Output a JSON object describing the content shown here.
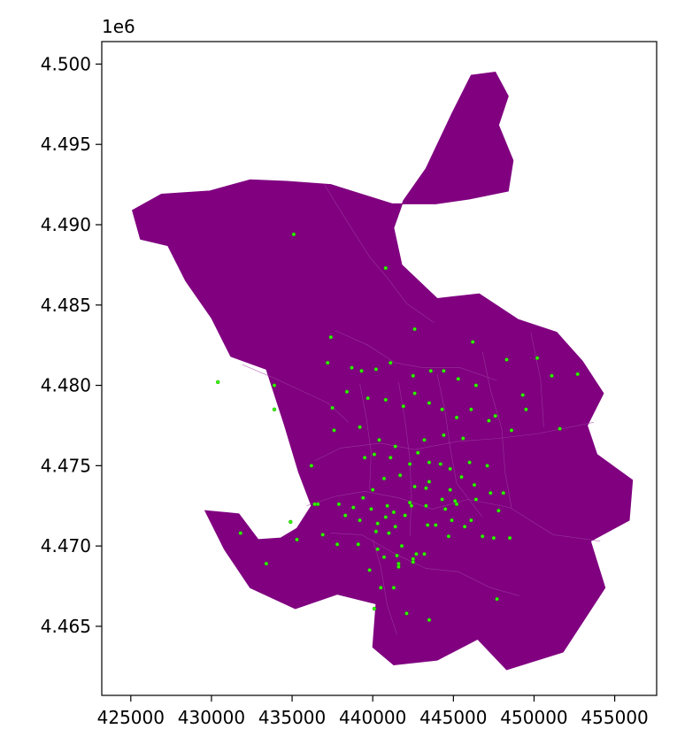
{
  "chart_data": {
    "type": "scatter",
    "title": "",
    "xlabel": "",
    "ylabel": "",
    "y_offset_label": "1e6",
    "xlim": [
      423200,
      457600
    ],
    "ylim": [
      4460700,
      4501400
    ],
    "x_ticks": [
      425000,
      430000,
      435000,
      440000,
      445000,
      450000,
      455000
    ],
    "x_tick_labels": [
      "425000",
      "430000",
      "435000",
      "440000",
      "445000",
      "450000",
      "455000"
    ],
    "y_ticks": [
      4465000,
      4470000,
      4475000,
      4480000,
      4485000,
      4490000,
      4495000,
      4500000
    ],
    "y_tick_labels": [
      "4.465",
      "4.470",
      "4.475",
      "4.480",
      "4.485",
      "4.490",
      "4.495",
      "4.500"
    ],
    "grid": false,
    "legend": "none",
    "colors": {
      "polygon_fill": "#800080",
      "polygon_edge": "#a040a0",
      "points": "#33ff00",
      "point_edge": "#1a8000"
    },
    "layers": [
      {
        "kind": "polygons",
        "name": "districts",
        "outline": [
          [
            432900,
            4470400
          ],
          [
            431700,
            4472000
          ],
          [
            429600,
            4472200
          ],
          [
            430800,
            4469800
          ],
          [
            432400,
            4467400
          ],
          [
            435200,
            4466100
          ],
          [
            437800,
            4467000
          ],
          [
            440200,
            4466400
          ],
          [
            440000,
            4463700
          ],
          [
            441300,
            4462600
          ],
          [
            444000,
            4462900
          ],
          [
            446500,
            4464200
          ],
          [
            448300,
            4462300
          ],
          [
            451800,
            4463400
          ],
          [
            454400,
            4467400
          ],
          [
            453500,
            4470300
          ],
          [
            455900,
            4471600
          ],
          [
            456100,
            4474100
          ],
          [
            453900,
            4475700
          ],
          [
            453300,
            4477500
          ],
          [
            454300,
            4479500
          ],
          [
            453000,
            4481500
          ],
          [
            451400,
            4483300
          ],
          [
            449000,
            4484100
          ],
          [
            446600,
            4485700
          ],
          [
            444000,
            4485400
          ],
          [
            441800,
            4487500
          ],
          [
            441300,
            4489800
          ],
          [
            441900,
            4491500
          ],
          [
            443300,
            4493500
          ],
          [
            444900,
            4496900
          ],
          [
            446100,
            4499300
          ],
          [
            447600,
            4499500
          ],
          [
            448400,
            4498000
          ],
          [
            447800,
            4496200
          ],
          [
            448700,
            4494000
          ],
          [
            448400,
            4492100
          ],
          [
            446000,
            4491600
          ],
          [
            443900,
            4491300
          ],
          [
            441200,
            4491300
          ],
          [
            437400,
            4492500
          ],
          [
            434700,
            4492700
          ],
          [
            432400,
            4492800
          ],
          [
            429900,
            4492100
          ],
          [
            426900,
            4491900
          ],
          [
            425100,
            4490900
          ],
          [
            425600,
            4489100
          ],
          [
            427300,
            4488700
          ],
          [
            428400,
            4486500
          ],
          [
            430000,
            4484200
          ],
          [
            431200,
            4481800
          ],
          [
            433400,
            4481000
          ],
          [
            434500,
            4477600
          ],
          [
            435400,
            4474600
          ],
          [
            436200,
            4472500
          ],
          [
            435300,
            4471100
          ],
          [
            434300,
            4470500
          ]
        ],
        "internal_boundaries": [
          [
            [
              437000,
              4492500
            ],
            [
              438600,
              4489900
            ],
            [
              439800,
              4488000
            ],
            [
              440900,
              4486700
            ],
            [
              442100,
              4485100
            ],
            [
              443800,
              4483900
            ]
          ],
          [
            [
              431900,
              4481300
            ],
            [
              434000,
              4480400
            ],
            [
              435500,
              4479700
            ],
            [
              437200,
              4478900
            ],
            [
              438500,
              4477700
            ]
          ],
          [
            [
              437700,
              4483400
            ],
            [
              439700,
              4482500
            ],
            [
              441400,
              4481400
            ],
            [
              443100,
              4481100
            ],
            [
              445400,
              4481100
            ],
            [
              447700,
              4480300
            ]
          ],
          [
            [
              436400,
              4475300
            ],
            [
              438000,
              4476100
            ],
            [
              440500,
              4476400
            ],
            [
              442600,
              4476000
            ],
            [
              445200,
              4476500
            ],
            [
              447800,
              4476700
            ],
            [
              450300,
              4477000
            ],
            [
              453700,
              4477700
            ]
          ],
          [
            [
              435900,
              4472500
            ],
            [
              437700,
              4473100
            ],
            [
              439500,
              4473400
            ],
            [
              441600,
              4473000
            ],
            [
              443700,
              4472300
            ],
            [
              445900,
              4472900
            ],
            [
              448500,
              4472400
            ],
            [
              451200,
              4470700
            ],
            [
              454100,
              4470300
            ]
          ],
          [
            [
              437400,
              4470800
            ],
            [
              439300,
              4470700
            ],
            [
              441400,
              4469500
            ],
            [
              443300,
              4468600
            ],
            [
              445300,
              4468400
            ],
            [
              447300,
              4467400
            ],
            [
              449100,
              4466900
            ]
          ],
          [
            [
              440000,
              4470400
            ],
            [
              440500,
              4468700
            ],
            [
              440900,
              4466300
            ],
            [
              441500,
              4464500
            ]
          ],
          [
            [
              441600,
              4480200
            ],
            [
              442000,
              4477800
            ],
            [
              442300,
              4475400
            ],
            [
              442400,
              4473100
            ],
            [
              442300,
              4470600
            ]
          ],
          [
            [
              439200,
              4480100
            ],
            [
              439600,
              4478000
            ],
            [
              439900,
              4475800
            ],
            [
              439800,
              4473500
            ]
          ],
          [
            [
              444000,
              4480700
            ],
            [
              444500,
              4478300
            ],
            [
              444800,
              4476100
            ],
            [
              445200,
              4473900
            ],
            [
              446800,
              4471800
            ]
          ],
          [
            [
              446800,
              4482100
            ],
            [
              447300,
              4479700
            ],
            [
              448000,
              4477300
            ],
            [
              448200,
              4474600
            ],
            [
              448600,
              4472400
            ]
          ],
          [
            [
              449800,
              4483300
            ],
            [
              450400,
              4480400
            ],
            [
              450600,
              4477400
            ]
          ]
        ]
      },
      {
        "kind": "points",
        "name": "centroids",
        "x": [
          435100,
          440800,
          442600,
          446200,
          430400,
          433900,
          433900,
          437200,
          438700,
          437400,
          439300,
          440200,
          441100,
          442500,
          443600,
          444400,
          445300,
          446400,
          448300,
          450200,
          449300,
          451100,
          452700,
          431800,
          433400,
          435300,
          436200,
          436600,
          437500,
          438400,
          439700,
          440800,
          441900,
          442600,
          443500,
          444300,
          445200,
          446100,
          447200,
          448600,
          449500,
          451600,
          447600,
          434900,
          436900,
          437800,
          438300,
          439100,
          440300,
          441600,
          442500,
          443200,
          443900,
          444700,
          445700,
          446800,
          447500,
          448500,
          439400,
          440000,
          440700,
          441700,
          442600,
          443500,
          444800,
          445500,
          446300,
          447300,
          448100,
          439500,
          440100,
          441100,
          442300,
          443500,
          444200,
          444800,
          446000,
          447100,
          437600,
          439200,
          440400,
          441400,
          442800,
          443200,
          444400,
          445600,
          436400,
          437900,
          438800,
          439900,
          440900,
          442000,
          443300,
          444500,
          445200,
          446400,
          447800,
          440800,
          441400,
          442400,
          443400,
          439200,
          440200,
          441300,
          442300,
          443300,
          444300,
          445100,
          440100,
          440500,
          441300,
          442100,
          443500,
          444900,
          446100,
          440300,
          441000,
          441800,
          442700,
          440700,
          441500,
          439800,
          441600,
          442500,
          447700
        ],
        "y": [
          4489400,
          4487300,
          4483500,
          4482700,
          4480200,
          4480000,
          4478500,
          4481400,
          4481100,
          4483000,
          4480900,
          4481000,
          4481400,
          4480600,
          4480900,
          4480900,
          4480400,
          4480000,
          4481600,
          4481700,
          4479400,
          4480600,
          4480700,
          4470800,
          4468900,
          4470400,
          4475000,
          4472600,
          4478600,
          4479600,
          4479200,
          4479100,
          4478700,
          4479500,
          4478900,
          4478500,
          4478000,
          4478500,
          4477800,
          4477200,
          4478500,
          4477300,
          4478100,
          4471500,
          4470700,
          4470100,
          4471900,
          4470100,
          4469800,
          4468900,
          4469200,
          4469500,
          4471300,
          4470600,
          4471200,
          4470600,
          4470500,
          4470500,
          4473000,
          4473500,
          4474200,
          4474400,
          4473700,
          4474000,
          4473500,
          4474300,
          4473800,
          4473300,
          4473300,
          4475500,
          4475700,
          4475500,
          4475100,
          4475200,
          4475100,
          4474800,
          4475200,
          4475000,
          4477200,
          4477400,
          4476600,
          4476200,
          4475800,
          4476600,
          4476900,
          4476700,
          4472600,
          4472600,
          4472400,
          4472300,
          4472500,
          4471900,
          4472500,
          4472300,
          4472600,
          4472900,
          4472200,
          4471800,
          4471200,
          4472500,
          4471300,
          4471600,
          4470900,
          4472100,
          4472700,
          4473600,
          4472900,
          4472800,
          4466100,
          4467400,
          4467400,
          4465800,
          4465400,
          4471600,
          4471600,
          4471400,
          4470800,
          4470000,
          4469500,
          4469300,
          4469400,
          4468500,
          4468700,
          4469000,
          4466700
        ]
      }
    ]
  }
}
